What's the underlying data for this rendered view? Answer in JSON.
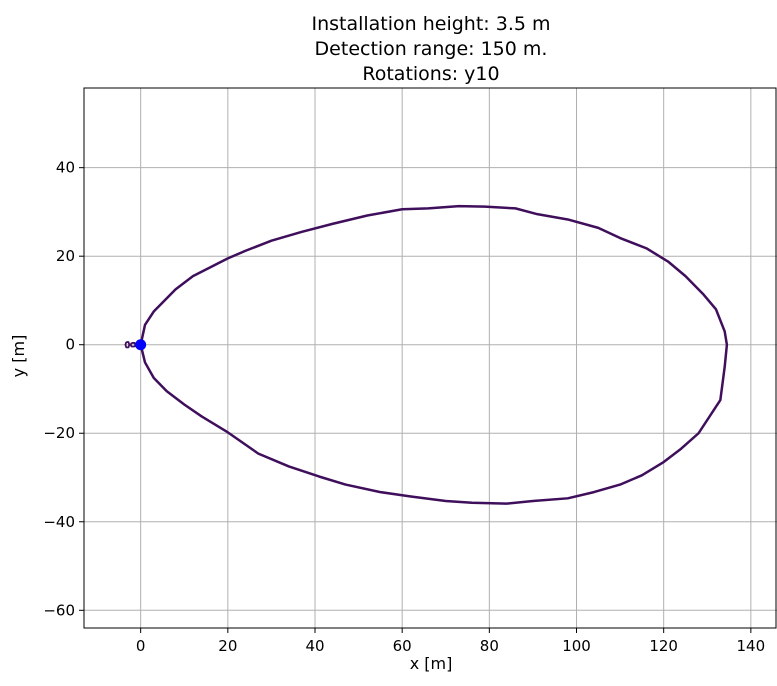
{
  "chart_data": {
    "type": "line",
    "title_lines": [
      "Installation height: 3.5 m",
      "Detection range: 150 m.",
      "Rotations: y10"
    ],
    "xlabel": "x [m]",
    "ylabel": "y [m]",
    "xlim": [
      -13,
      146
    ],
    "ylim": [
      -64,
      58
    ],
    "xticks": [
      0,
      20,
      40,
      60,
      80,
      100,
      120,
      140
    ],
    "yticks": [
      -60,
      -40,
      -20,
      0,
      20,
      40
    ],
    "grid": true,
    "colors": {
      "contour": "#3f0f5c",
      "marker": "#0000ff",
      "grid": "#b0b0b0"
    },
    "series": [
      {
        "values": [
          [
            0,
            0
          ],
          [
            1,
            4.5
          ],
          [
            3,
            7.5
          ],
          [
            6,
            10.5
          ],
          [
            8,
            12.5
          ],
          [
            12,
            15.5
          ],
          [
            16,
            17.5
          ],
          [
            20,
            19.5
          ],
          [
            24,
            21.2
          ],
          [
            30,
            23.5
          ],
          [
            37,
            25.5
          ],
          [
            44,
            27.3
          ],
          [
            52,
            29.2
          ],
          [
            60,
            30.6
          ],
          [
            66,
            30.8
          ],
          [
            73,
            31.3
          ],
          [
            79,
            31.2
          ],
          [
            86,
            30.8
          ],
          [
            91,
            29.5
          ],
          [
            98,
            28.3
          ],
          [
            105,
            26.4
          ],
          [
            110,
            24.1
          ],
          [
            116,
            21.8
          ],
          [
            121,
            18.8
          ],
          [
            125,
            15.5
          ],
          [
            129,
            11.5
          ],
          [
            132,
            8
          ],
          [
            134,
            3
          ],
          [
            134.5,
            0
          ],
          [
            134,
            -5
          ],
          [
            133,
            -12.5
          ],
          [
            128,
            -20
          ],
          [
            124,
            -23.5
          ],
          [
            120,
            -26.5
          ],
          [
            115,
            -29.5
          ],
          [
            110,
            -31.6
          ],
          [
            104,
            -33.3
          ],
          [
            98,
            -34.7
          ],
          [
            90,
            -35.3
          ],
          [
            84,
            -35.9
          ],
          [
            76,
            -35.7
          ],
          [
            70,
            -35.3
          ],
          [
            62,
            -34.3
          ],
          [
            55,
            -33.3
          ],
          [
            47,
            -31.6
          ],
          [
            41,
            -29.8
          ],
          [
            34,
            -27.5
          ],
          [
            27,
            -24.6
          ],
          [
            20,
            -19.8
          ],
          [
            14,
            -16.2
          ],
          [
            10,
            -13.5
          ],
          [
            6,
            -10.5
          ],
          [
            3,
            -7.5
          ],
          [
            1,
            -4
          ],
          [
            0,
            0
          ]
        ]
      },
      {
        "values": [
          [
            -3.3,
            0.6
          ],
          [
            -2.8,
            0.6
          ],
          [
            -2.6,
            0
          ],
          [
            -2.8,
            -0.6
          ],
          [
            -3.3,
            -0.6
          ],
          [
            -3.5,
            0
          ],
          [
            -3.3,
            0.6
          ]
        ]
      },
      {
        "values": [
          [
            -2.1,
            0.4
          ],
          [
            -1.4,
            0.4
          ],
          [
            -1.2,
            0
          ],
          [
            -1.4,
            -0.4
          ],
          [
            -2.1,
            -0.4
          ],
          [
            -2.3,
            0
          ],
          [
            -2.1,
            0.4
          ]
        ]
      }
    ],
    "marker_point": [
      0,
      0
    ]
  }
}
